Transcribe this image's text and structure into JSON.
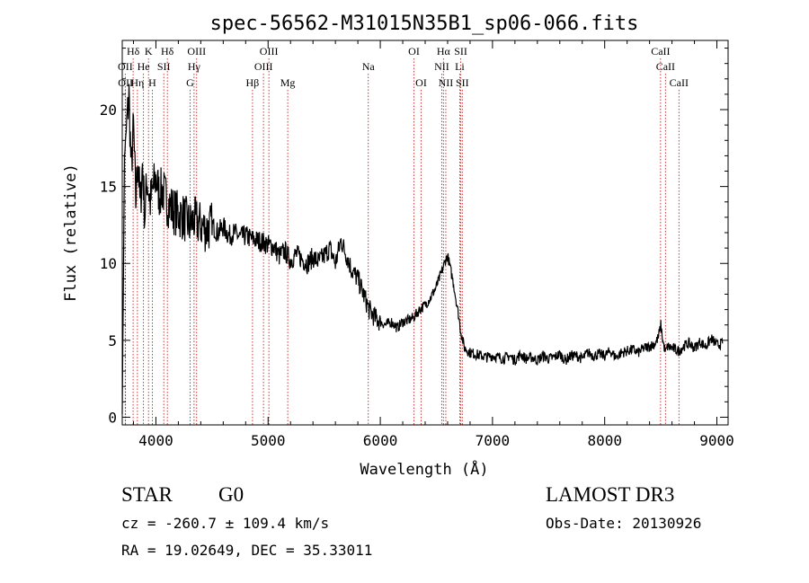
{
  "chart_data": {
    "type": "line",
    "title": "spec-56562-M31015N35B1_sp06-066.fits",
    "xlabel": "Wavelength (Å)",
    "ylabel": "Flux (relative)",
    "xlim": [
      3700,
      9100
    ],
    "ylim": [
      -0.5,
      24.5
    ],
    "x_ticks": [
      4000,
      5000,
      6000,
      7000,
      8000,
      9000
    ],
    "y_ticks": [
      0,
      5,
      10,
      15,
      20
    ],
    "grid": false,
    "series": [
      {
        "color": "#000000",
        "x": [
          3700,
          3720,
          3740,
          3760,
          3780,
          3800,
          3820,
          3840,
          3860,
          3880,
          3900,
          3920,
          3950,
          3980,
          4000,
          4030,
          4060,
          4100,
          4150,
          4200,
          4250,
          4300,
          4340,
          4400,
          4450,
          4500,
          4550,
          4600,
          4650,
          4700,
          4750,
          4800,
          4850,
          4900,
          4950,
          5000,
          5050,
          5100,
          5150,
          5200,
          5250,
          5300,
          5350,
          5400,
          5450,
          5500,
          5550,
          5600,
          5650,
          5700,
          5750,
          5800,
          5850,
          5900,
          5950,
          6000,
          6050,
          6100,
          6150,
          6200,
          6250,
          6300,
          6350,
          6400,
          6450,
          6500,
          6550,
          6580,
          6600,
          6620,
          6650,
          6700,
          6720,
          6750,
          6800,
          6850,
          6900,
          6950,
          7000,
          7050,
          7100,
          7150,
          7200,
          7250,
          7300,
          7350,
          7400,
          7450,
          7500,
          7550,
          7600,
          7650,
          7700,
          7750,
          7800,
          7850,
          7900,
          7950,
          8000,
          8050,
          8100,
          8150,
          8200,
          8250,
          8300,
          8350,
          8400,
          8450,
          8480,
          8500,
          8520,
          8542,
          8560,
          8600,
          8662,
          8700,
          8750,
          8800,
          8850,
          8900,
          8950,
          9000,
          9050
        ],
        "y": [
          0.5,
          17,
          19,
          21,
          16,
          19,
          14,
          17,
          13.5,
          16.5,
          13,
          15.5,
          14,
          15,
          15.5,
          14.5,
          14.8,
          14,
          13.5,
          13.2,
          13,
          12.5,
          12.8,
          12.5,
          12.2,
          12.5,
          12,
          12.4,
          11.8,
          12,
          11.7,
          11.8,
          11.6,
          11.5,
          11.4,
          11.2,
          11.1,
          10.5,
          10.8,
          10.2,
          10.6,
          10.3,
          10,
          10.4,
          10.1,
          10.5,
          11,
          10,
          11.5,
          10.5,
          9.5,
          9,
          8,
          7,
          6.5,
          6.2,
          6,
          6.2,
          5.8,
          6.2,
          6.3,
          6.5,
          7,
          7.3,
          7.8,
          8.5,
          9.5,
          10.2,
          10.5,
          9.8,
          8.8,
          6.5,
          5.5,
          4.5,
          4.2,
          4.1,
          4,
          3.9,
          4,
          3.9,
          3.8,
          4,
          3.7,
          4.1,
          3.8,
          3.9,
          3.7,
          4,
          3.8,
          3.9,
          4.1,
          3.7,
          4,
          4,
          3.8,
          4.2,
          4,
          4.1,
          4,
          4.3,
          3.9,
          4.2,
          4.3,
          4.4,
          4.2,
          4.5,
          4.6,
          4.8,
          5.2,
          6,
          4.9,
          4.2,
          4.6,
          4.5,
          4.3,
          4.6,
          4.8,
          4.5,
          4.9,
          4.6,
          5.1,
          4.7,
          4.8
        ]
      }
    ],
    "line_markers": [
      {
        "label": "Hδ",
        "wavelength": 3797,
        "row": 0
      },
      {
        "label": "K",
        "wavelength": 3934,
        "row": 0
      },
      {
        "label": "Hδ",
        "wavelength": 4102,
        "row": 0
      },
      {
        "label": "OIII",
        "wavelength": 4363,
        "row": 0
      },
      {
        "label": "OIII",
        "wavelength": 5007,
        "row": 0
      },
      {
        "label": "OI",
        "wavelength": 6300,
        "row": 0
      },
      {
        "label": "Hα",
        "wavelength": 6563,
        "row": 0
      },
      {
        "label": "SII",
        "wavelength": 6717,
        "row": 0
      },
      {
        "label": "CaII",
        "wavelength": 8498,
        "row": 0
      },
      {
        "label": "OII",
        "wavelength": 3727,
        "row": 1
      },
      {
        "label": "He",
        "wavelength": 3889,
        "row": 1
      },
      {
        "label": "SII",
        "wavelength": 4070,
        "row": 1
      },
      {
        "label": "Hγ",
        "wavelength": 4340,
        "row": 1
      },
      {
        "label": "OIII",
        "wavelength": 4959,
        "row": 1
      },
      {
        "label": "Na",
        "wavelength": 5893,
        "row": 1
      },
      {
        "label": "NII",
        "wavelength": 6548,
        "row": 1
      },
      {
        "label": "Li",
        "wavelength": 6708,
        "row": 1
      },
      {
        "label": "CaII",
        "wavelength": 8542,
        "row": 1
      },
      {
        "label": "OII",
        "wavelength": 3729,
        "row": 2
      },
      {
        "label": "Hη",
        "wavelength": 3835,
        "row": 2
      },
      {
        "label": "H",
        "wavelength": 3968,
        "row": 2
      },
      {
        "label": "G",
        "wavelength": 4305,
        "row": 2
      },
      {
        "label": "Hβ",
        "wavelength": 4861,
        "row": 2
      },
      {
        "label": "Mg",
        "wavelength": 5175,
        "row": 2
      },
      {
        "label": "OI",
        "wavelength": 6364,
        "row": 2
      },
      {
        "label": "NII",
        "wavelength": 6584,
        "row": 2
      },
      {
        "label": "SII",
        "wavelength": 6731,
        "row": 2
      },
      {
        "label": "CaII",
        "wavelength": 8662,
        "row": 2
      }
    ]
  },
  "info": {
    "class": "STAR",
    "subclass": "G0",
    "survey": "LAMOST DR3",
    "cz": "cz = -260.7 ± 109.4 km/s",
    "obsdate": "Obs-Date: 20130926",
    "radec": "RA =  19.02649, DEC =  35.33011"
  }
}
